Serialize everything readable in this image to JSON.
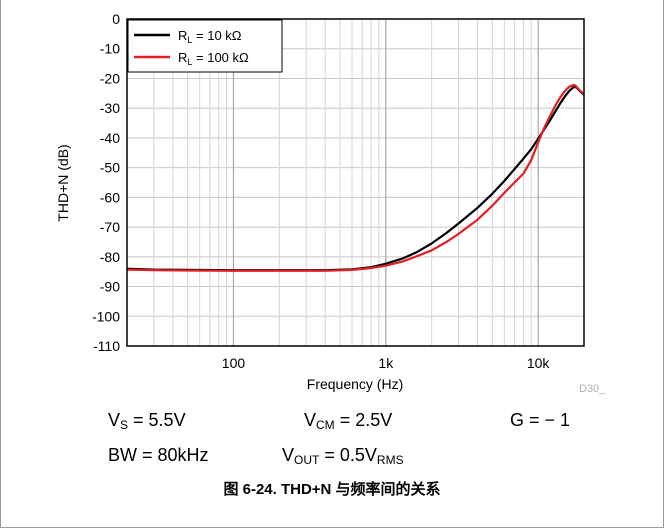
{
  "chart_data": {
    "type": "line",
    "title": "",
    "xlabel": "Frequency (Hz)",
    "ylabel": "THD+N (dB)",
    "xscale": "log",
    "xlim": [
      20,
      20000
    ],
    "ylim": [
      -110,
      0
    ],
    "yticks": [
      0,
      -10,
      -20,
      -30,
      -40,
      -50,
      -60,
      -70,
      -80,
      -90,
      -100,
      -110
    ],
    "yticklabels": [
      "0",
      "-10",
      "-20",
      "-30",
      "-40",
      "-50",
      "-60",
      "-70",
      "-80",
      "-90",
      "-100",
      "-110"
    ],
    "xticks": [
      100,
      1000,
      10000
    ],
    "xticklabels": [
      "100",
      "1k",
      "10k"
    ],
    "grid": true,
    "legend_position": "top-left",
    "series": [
      {
        "name_main": "R",
        "name_sub": "L",
        "name_rest": " = 10 kΩ",
        "color": "#000000",
        "x": [
          20,
          30,
          50,
          100,
          200,
          400,
          600,
          800,
          1000,
          1300,
          1600,
          2000,
          2500,
          3000,
          4000,
          5000,
          6000,
          7000,
          8000,
          9000,
          10000,
          11000,
          12000,
          13000,
          14000,
          15000,
          16000,
          17000,
          17500,
          18000,
          19000,
          20000
        ],
        "y": [
          -84,
          -84.3,
          -84.4,
          -84.5,
          -84.5,
          -84.5,
          -84.2,
          -83.5,
          -82.3,
          -80.5,
          -78.4,
          -75.5,
          -72,
          -68.8,
          -63.5,
          -58.8,
          -54.5,
          -50.5,
          -47,
          -43.8,
          -40.3,
          -37,
          -34,
          -31,
          -28.3,
          -26,
          -24.2,
          -23,
          -22.8,
          -23.2,
          -24.5,
          -25.5
        ]
      },
      {
        "name_main": "R",
        "name_sub": "L",
        "name_rest": " = 100 kΩ",
        "color": "#e31e24",
        "x": [
          20,
          30,
          50,
          100,
          200,
          400,
          600,
          800,
          1000,
          1300,
          1600,
          2000,
          2500,
          3000,
          4000,
          5000,
          6000,
          7000,
          8000,
          9000,
          10000,
          11000,
          12000,
          13000,
          14000,
          15000,
          16000,
          17000,
          17500,
          18000,
          19000,
          20000
        ],
        "y": [
          -84.3,
          -84.5,
          -84.6,
          -84.7,
          -84.7,
          -84.7,
          -84.4,
          -83.8,
          -83,
          -81.5,
          -79.8,
          -77.8,
          -75,
          -72.3,
          -67.5,
          -62.8,
          -58.5,
          -55,
          -52,
          -47.5,
          -41.5,
          -36.5,
          -32.5,
          -29,
          -26.3,
          -24.2,
          -22.8,
          -22.2,
          -22.3,
          -23,
          -24.3,
          -25.2
        ]
      }
    ]
  },
  "conditions": {
    "vs_main": "V",
    "vs_sub": "S",
    "vs_value": " = 5.5V",
    "vcm_main": "V",
    "vcm_sub": "CM",
    "vcm_value": " = 2.5V",
    "gain": "G = − 1",
    "bw": "BW = 80kHz",
    "vout_main": "V",
    "vout_sub": "OUT",
    "vout_value": " = 0.5V",
    "vout_unit_sub": "RMS"
  },
  "figure_id": "D30_",
  "caption": "图 6-24. THD+N 与频率间的关系"
}
